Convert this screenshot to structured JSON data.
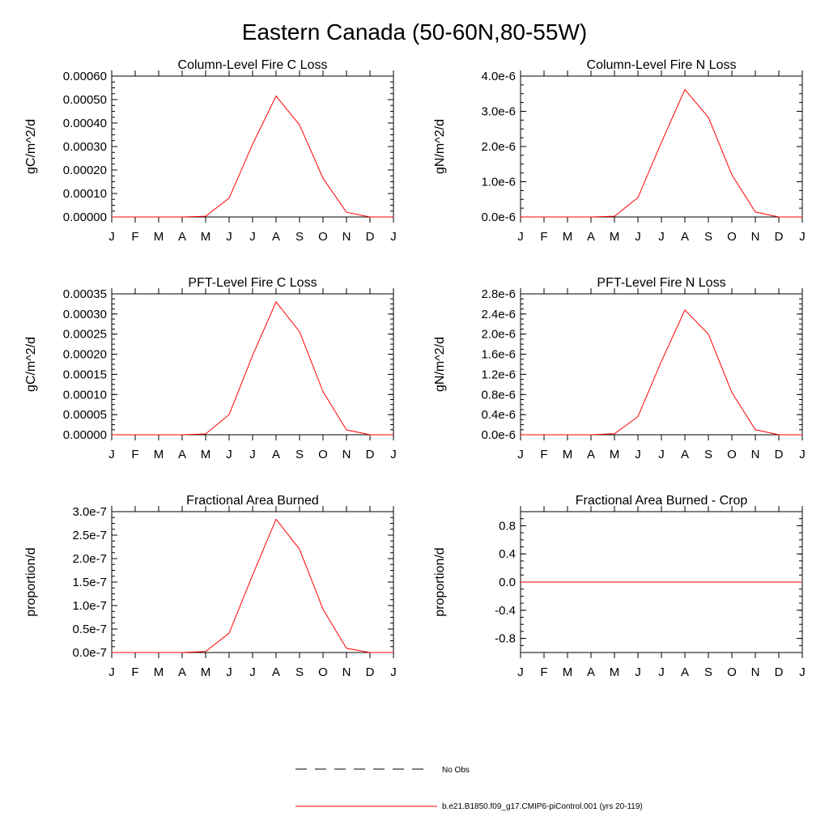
{
  "title": "Eastern Canada (50-60N,80-55W)",
  "months": [
    "J",
    "F",
    "M",
    "A",
    "M",
    "J",
    "J",
    "A",
    "S",
    "O",
    "N",
    "D",
    "J"
  ],
  "colors": {
    "series": "#ff0000",
    "axis": "#000000",
    "obs": "#000000"
  },
  "legend": {
    "obs_label": "No Obs",
    "model_label": "b.e21.B1850.f09_g17.CMIP6-piControl.001 (yrs 20-119)"
  },
  "chart_data": [
    {
      "type": "line",
      "title": "Column-Level Fire C Loss",
      "ylabel": "gC/m^2/d",
      "ylim": [
        0,
        0.0006
      ],
      "yticks": [
        "0.00000",
        "0.00010",
        "0.00020",
        "0.00030",
        "0.00040",
        "0.00050",
        "0.00060"
      ],
      "x": [
        "J",
        "F",
        "M",
        "A",
        "M",
        "J",
        "J",
        "A",
        "S",
        "O",
        "N",
        "D",
        "J"
      ],
      "values": [
        0,
        0,
        0,
        0,
        3e-06,
        8e-05,
        0.00031,
        0.000515,
        0.000392,
        0.000165,
        2e-05,
        0,
        0
      ]
    },
    {
      "type": "line",
      "title": "Column-Level Fire N Loss",
      "ylabel": "gN/m^2/d",
      "ylim": [
        0,
        4e-06
      ],
      "yticks": [
        "0.0e-6",
        "1.0e-6",
        "2.0e-6",
        "3.0e-6",
        "4.0e-6"
      ],
      "x": [
        "J",
        "F",
        "M",
        "A",
        "M",
        "J",
        "J",
        "A",
        "S",
        "O",
        "N",
        "D",
        "J"
      ],
      "values": [
        0,
        0,
        0,
        0,
        2e-08,
        5.5e-07,
        2.12e-06,
        3.62e-06,
        2.83e-06,
        1.2e-06,
        1.4e-07,
        0,
        0
      ]
    },
    {
      "type": "line",
      "title": "PFT-Level Fire C Loss",
      "ylabel": "gC/m^2/d",
      "ylim": [
        0,
        0.00035
      ],
      "yticks": [
        "0.00000",
        "0.00005",
        "0.00010",
        "0.00015",
        "0.00020",
        "0.00025",
        "0.00030",
        "0.00035"
      ],
      "x": [
        "J",
        "F",
        "M",
        "A",
        "M",
        "J",
        "J",
        "A",
        "S",
        "O",
        "N",
        "D",
        "J"
      ],
      "values": [
        0,
        0,
        0,
        0,
        2e-06,
        5e-05,
        0.000197,
        0.00033,
        0.000256,
        0.000107,
        1.2e-05,
        0,
        0
      ]
    },
    {
      "type": "line",
      "title": "PFT-Level Fire N Loss",
      "ylabel": "gN/m^2/d",
      "ylim": [
        0,
        2.8e-06
      ],
      "yticks": [
        "0.0e-6",
        "0.4e-6",
        "0.8e-6",
        "1.2e-6",
        "1.6e-6",
        "2.0e-6",
        "2.4e-6",
        "2.8e-6"
      ],
      "x": [
        "J",
        "F",
        "M",
        "A",
        "M",
        "J",
        "J",
        "A",
        "S",
        "O",
        "N",
        "D",
        "J"
      ],
      "values": [
        0,
        0,
        0,
        0,
        2e-08,
        3.6e-07,
        1.46e-06,
        2.48e-06,
        2e-06,
        8.4e-07,
        1e-07,
        0,
        0
      ]
    },
    {
      "type": "line",
      "title": "Fractional Area Burned",
      "ylabel": "proportion/d",
      "ylim": [
        0,
        3e-07
      ],
      "yticks": [
        "0.0e-7",
        "0.5e-7",
        "1.0e-7",
        "1.5e-7",
        "2.0e-7",
        "2.5e-7",
        "3.0e-7"
      ],
      "x": [
        "J",
        "F",
        "M",
        "A",
        "M",
        "J",
        "J",
        "A",
        "S",
        "O",
        "N",
        "D",
        "J"
      ],
      "values": [
        0,
        0,
        0,
        0,
        2e-09,
        4.1e-08,
        1.65e-07,
        2.84e-07,
        2.2e-07,
        9.2e-08,
        9e-09,
        0,
        0
      ]
    },
    {
      "type": "line",
      "title": "Fractional Area Burned - Crop",
      "ylabel": "proportion/d",
      "ylim": [
        -1.0,
        1.0
      ],
      "yticks": [
        "-0.8",
        "-0.4",
        "0.0",
        "0.4",
        "0.8"
      ],
      "ytick_values": [
        -0.8,
        -0.4,
        0.0,
        0.4,
        0.8
      ],
      "x": [
        "J",
        "F",
        "M",
        "A",
        "M",
        "J",
        "J",
        "A",
        "S",
        "O",
        "N",
        "D",
        "J"
      ],
      "values": [
        0,
        0,
        0,
        0,
        0,
        0,
        0,
        0,
        0,
        0,
        0,
        0,
        0
      ]
    }
  ]
}
